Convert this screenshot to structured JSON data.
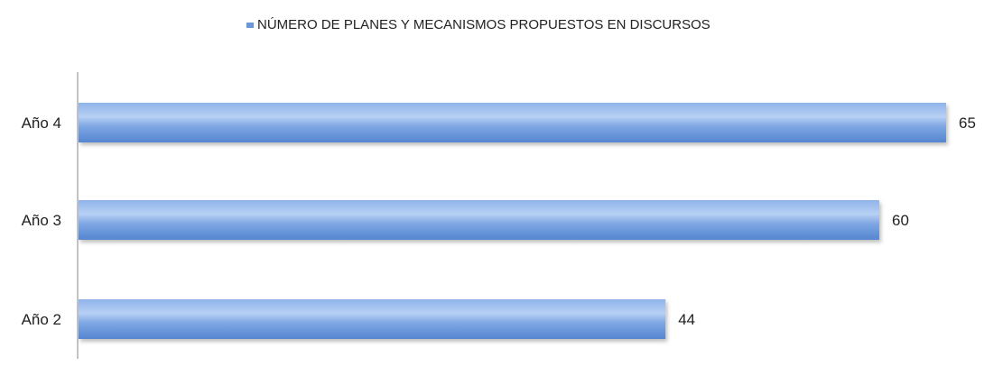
{
  "chart_data": {
    "type": "bar",
    "orientation": "horizontal",
    "categories": [
      "Año 4",
      "Año 3",
      "Año 2"
    ],
    "series": [
      {
        "name": "NÚMERO DE PLANES Y MECANISMOS PROPUESTOS EN DISCURSOS",
        "values": [
          65,
          60,
          44
        ],
        "color": "#6a98dc"
      }
    ],
    "data_labels": [
      "65",
      "60",
      "44"
    ],
    "xlim": [
      0,
      65
    ],
    "legend_position": "top",
    "grid": false,
    "colors": {
      "bar_fill": "#6a98dc",
      "bar_highlight": "#a9c7f0",
      "bar_shadow": "#4a78c0",
      "axis": "#888888",
      "text": "#222222"
    }
  }
}
